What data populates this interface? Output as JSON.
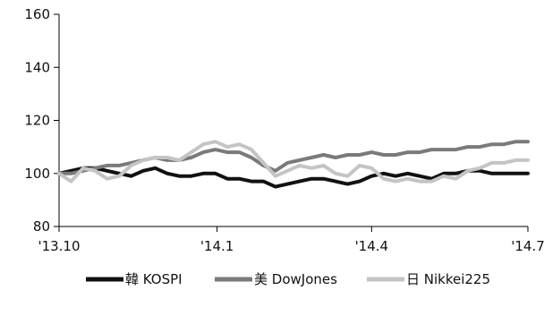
{
  "chart_data": {
    "type": "line",
    "title": "",
    "xlabel": "",
    "ylabel": "",
    "ylim": [
      80,
      160
    ],
    "yticks": [
      80,
      100,
      120,
      140,
      160
    ],
    "xlim": [
      "2013-10-01",
      "2014-07-01"
    ],
    "xtick_labels": [
      {
        "date": "2013-10-01",
        "label": "'13.10"
      },
      {
        "date": "2014-01-01",
        "label": "'14.1"
      },
      {
        "date": "2014-04-01",
        "label": "'14.4"
      },
      {
        "date": "2014-07-01",
        "label": "'14.7"
      }
    ],
    "grid": false,
    "legend_position": "bottom",
    "series": [
      {
        "name": "韓 KOSPI",
        "color": "#111111",
        "points": [
          [
            "2013-10-01",
            100
          ],
          [
            "2013-10-08",
            101
          ],
          [
            "2013-10-15",
            102
          ],
          [
            "2013-10-22",
            102
          ],
          [
            "2013-10-29",
            101
          ],
          [
            "2013-11-05",
            100
          ],
          [
            "2013-11-12",
            99
          ],
          [
            "2013-11-19",
            101
          ],
          [
            "2013-11-26",
            102
          ],
          [
            "2013-12-03",
            100
          ],
          [
            "2013-12-10",
            99
          ],
          [
            "2013-12-17",
            99
          ],
          [
            "2013-12-24",
            100
          ],
          [
            "2013-12-31",
            100
          ],
          [
            "2014-01-07",
            98
          ],
          [
            "2014-01-14",
            98
          ],
          [
            "2014-01-21",
            97
          ],
          [
            "2014-01-28",
            97
          ],
          [
            "2014-02-04",
            95
          ],
          [
            "2014-02-11",
            96
          ],
          [
            "2014-02-18",
            97
          ],
          [
            "2014-02-25",
            98
          ],
          [
            "2014-03-04",
            98
          ],
          [
            "2014-03-11",
            97
          ],
          [
            "2014-03-18",
            96
          ],
          [
            "2014-03-25",
            97
          ],
          [
            "2014-04-01",
            99
          ],
          [
            "2014-04-08",
            100
          ],
          [
            "2014-04-15",
            99
          ],
          [
            "2014-04-22",
            100
          ],
          [
            "2014-04-29",
            99
          ],
          [
            "2014-05-06",
            98
          ],
          [
            "2014-05-13",
            100
          ],
          [
            "2014-05-20",
            100
          ],
          [
            "2014-05-27",
            101
          ],
          [
            "2014-06-03",
            101
          ],
          [
            "2014-06-10",
            100
          ],
          [
            "2014-06-17",
            100
          ],
          [
            "2014-06-24",
            100
          ],
          [
            "2014-07-01",
            100
          ]
        ]
      },
      {
        "name": "美 DowJones",
        "color": "#7a7a7a",
        "points": [
          [
            "2013-10-01",
            100
          ],
          [
            "2013-10-08",
            100
          ],
          [
            "2013-10-15",
            101
          ],
          [
            "2013-10-22",
            102
          ],
          [
            "2013-10-29",
            103
          ],
          [
            "2013-11-05",
            103
          ],
          [
            "2013-11-12",
            104
          ],
          [
            "2013-11-19",
            105
          ],
          [
            "2013-11-26",
            106
          ],
          [
            "2013-12-03",
            105
          ],
          [
            "2013-12-10",
            105
          ],
          [
            "2013-12-17",
            106
          ],
          [
            "2013-12-24",
            108
          ],
          [
            "2013-12-31",
            109
          ],
          [
            "2014-01-07",
            108
          ],
          [
            "2014-01-14",
            108
          ],
          [
            "2014-01-21",
            106
          ],
          [
            "2014-01-28",
            103
          ],
          [
            "2014-02-04",
            101
          ],
          [
            "2014-02-11",
            104
          ],
          [
            "2014-02-18",
            105
          ],
          [
            "2014-02-25",
            106
          ],
          [
            "2014-03-04",
            107
          ],
          [
            "2014-03-11",
            106
          ],
          [
            "2014-03-18",
            107
          ],
          [
            "2014-03-25",
            107
          ],
          [
            "2014-04-01",
            108
          ],
          [
            "2014-04-08",
            107
          ],
          [
            "2014-04-15",
            107
          ],
          [
            "2014-04-22",
            108
          ],
          [
            "2014-04-29",
            108
          ],
          [
            "2014-05-06",
            109
          ],
          [
            "2014-05-13",
            109
          ],
          [
            "2014-05-20",
            109
          ],
          [
            "2014-05-27",
            110
          ],
          [
            "2014-06-03",
            110
          ],
          [
            "2014-06-10",
            111
          ],
          [
            "2014-06-17",
            111
          ],
          [
            "2014-06-24",
            112
          ],
          [
            "2014-07-01",
            112
          ]
        ]
      },
      {
        "name": "日 Nikkei225",
        "color": "#c4c4c4",
        "points": [
          [
            "2013-10-01",
            100
          ],
          [
            "2013-10-08",
            97
          ],
          [
            "2013-10-15",
            102
          ],
          [
            "2013-10-22",
            101
          ],
          [
            "2013-10-29",
            98
          ],
          [
            "2013-11-05",
            99
          ],
          [
            "2013-11-12",
            103
          ],
          [
            "2013-11-19",
            105
          ],
          [
            "2013-11-26",
            106
          ],
          [
            "2013-12-03",
            106
          ],
          [
            "2013-12-10",
            105
          ],
          [
            "2013-12-17",
            108
          ],
          [
            "2013-12-24",
            111
          ],
          [
            "2013-12-31",
            112
          ],
          [
            "2014-01-07",
            110
          ],
          [
            "2014-01-14",
            111
          ],
          [
            "2014-01-21",
            109
          ],
          [
            "2014-01-28",
            104
          ],
          [
            "2014-02-04",
            99
          ],
          [
            "2014-02-11",
            101
          ],
          [
            "2014-02-18",
            103
          ],
          [
            "2014-02-25",
            102
          ],
          [
            "2014-03-04",
            103
          ],
          [
            "2014-03-11",
            100
          ],
          [
            "2014-03-18",
            99
          ],
          [
            "2014-03-25",
            103
          ],
          [
            "2014-04-01",
            102
          ],
          [
            "2014-04-08",
            98
          ],
          [
            "2014-04-15",
            97
          ],
          [
            "2014-04-22",
            98
          ],
          [
            "2014-04-29",
            97
          ],
          [
            "2014-05-06",
            97
          ],
          [
            "2014-05-13",
            99
          ],
          [
            "2014-05-20",
            98
          ],
          [
            "2014-05-27",
            101
          ],
          [
            "2014-06-03",
            102
          ],
          [
            "2014-06-10",
            104
          ],
          [
            "2014-06-17",
            104
          ],
          [
            "2014-06-24",
            105
          ],
          [
            "2014-07-01",
            105
          ]
        ]
      }
    ]
  }
}
